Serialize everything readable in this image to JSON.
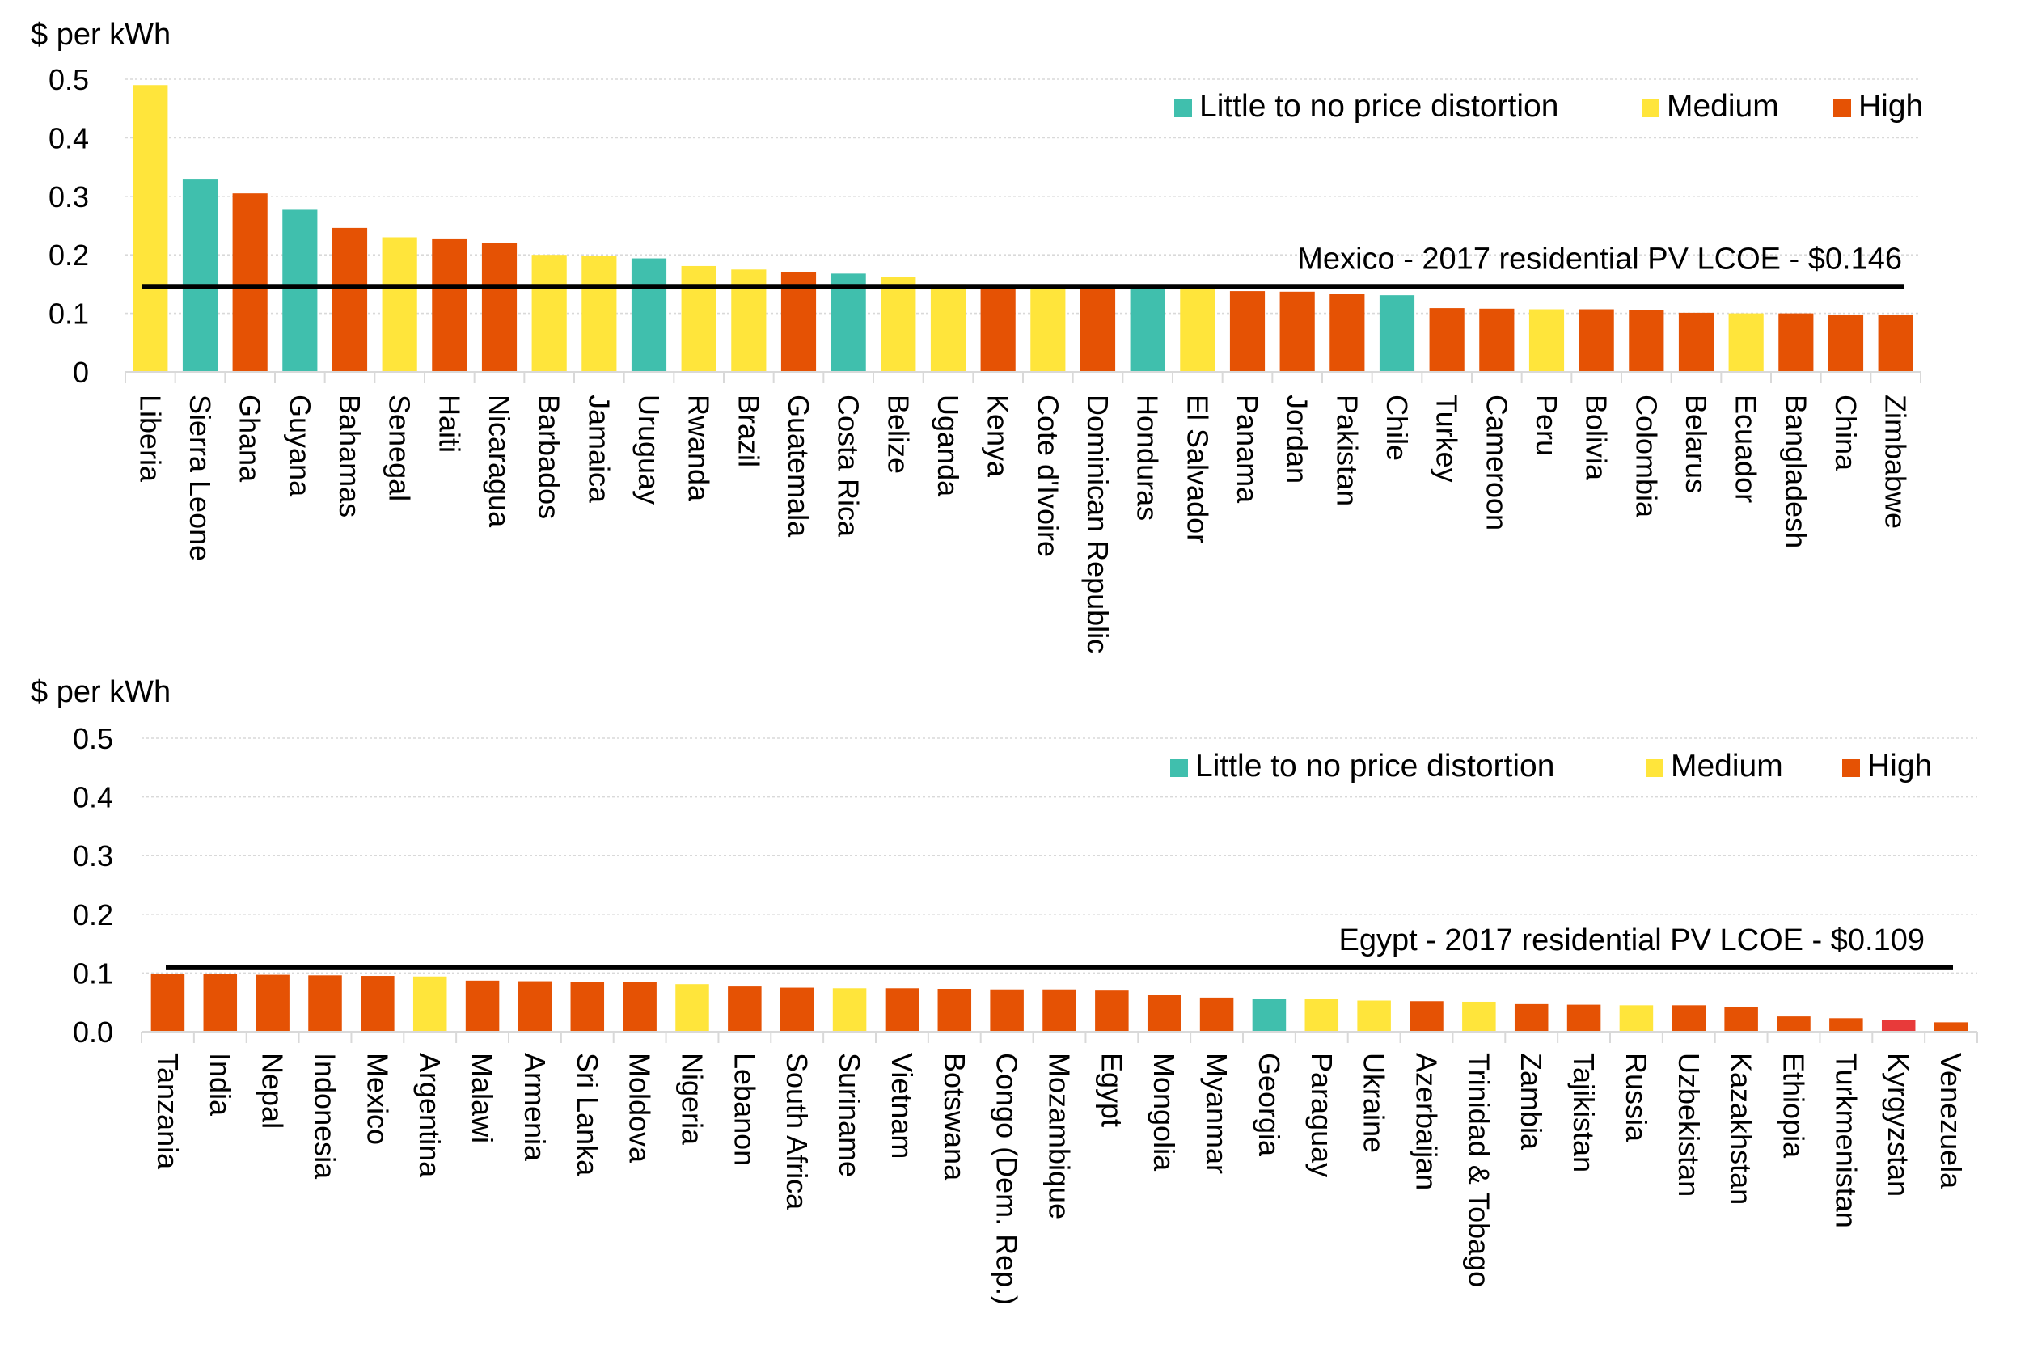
{
  "colors": {
    "little": "#40BFAD",
    "medium": "#FFE53B",
    "high": "#E55204",
    "kyrgyzstan": "#E83A3A",
    "reference_line": "#000000",
    "grid": "#D9D9D9"
  },
  "chart_data": [
    {
      "type": "bar",
      "ylabel": "$ per kWh",
      "ylim": [
        0,
        0.5
      ],
      "yticks": [
        "0",
        "0.1",
        "0.2",
        "0.3",
        "0.4",
        "0.5"
      ],
      "grid": true,
      "legend_placement": "top-right",
      "legend": [
        {
          "key": "little",
          "label": "Little to no price distortion"
        },
        {
          "key": "medium",
          "label": "Medium"
        },
        {
          "key": "high",
          "label": "High"
        }
      ],
      "reference_line": {
        "value": 0.146,
        "label": "Mexico - 2017 residential PV LCOE - $0.146"
      },
      "categories": [
        "Liberia",
        "Sierra Leone",
        "Ghana",
        "Guyana",
        "Bahamas",
        "Senegal",
        "Haiti",
        "Nicaragua",
        "Barbados",
        "Jamaica",
        "Uruguay",
        "Rwanda",
        "Brazil",
        "Guatemala",
        "Costa Rica",
        "Belize",
        "Uganda",
        "Kenya",
        "Cote d'Ivoire",
        "Dominican Republic",
        "Honduras",
        "El Salvador",
        "Panama",
        "Jordan",
        "Pakistan",
        "Chile",
        "Turkey",
        "Cameroon",
        "Peru",
        "Bolivia",
        "Colombia",
        "Belarus",
        "Ecuador",
        "Bangladesh",
        "China",
        "Zimbabwe"
      ],
      "values": [
        0.49,
        0.33,
        0.305,
        0.277,
        0.246,
        0.23,
        0.228,
        0.22,
        0.2,
        0.198,
        0.194,
        0.181,
        0.175,
        0.17,
        0.168,
        0.162,
        0.15,
        0.149,
        0.146,
        0.145,
        0.145,
        0.144,
        0.138,
        0.137,
        0.133,
        0.131,
        0.109,
        0.108,
        0.107,
        0.107,
        0.106,
        0.101,
        0.1,
        0.1,
        0.098,
        0.097
      ],
      "distortion": [
        "medium",
        "little",
        "high",
        "little",
        "high",
        "medium",
        "high",
        "high",
        "medium",
        "medium",
        "little",
        "medium",
        "medium",
        "high",
        "little",
        "medium",
        "medium",
        "high",
        "medium",
        "high",
        "little",
        "medium",
        "high",
        "high",
        "high",
        "little",
        "high",
        "high",
        "medium",
        "high",
        "high",
        "high",
        "medium",
        "high",
        "high",
        "high"
      ]
    },
    {
      "type": "bar",
      "ylabel": "$ per kWh",
      "ylim": [
        0,
        0.5
      ],
      "yticks": [
        "0.0",
        "0.1",
        "0.2",
        "0.3",
        "0.4",
        "0.5"
      ],
      "grid": true,
      "legend_placement": "top-right",
      "legend": [
        {
          "key": "little",
          "label": "Little to no price distortion"
        },
        {
          "key": "medium",
          "label": "Medium"
        },
        {
          "key": "high",
          "label": "High"
        }
      ],
      "reference_line": {
        "value": 0.109,
        "label": "Egypt - 2017 residential PV LCOE - $0.109"
      },
      "categories": [
        "Tanzania",
        "India",
        "Nepal",
        "Indonesia",
        "Mexico",
        "Argentina",
        "Malawi",
        "Armenia",
        "Sri Lanka",
        "Moldova",
        "Nigeria",
        "Lebanon",
        "South Africa",
        "Suriname",
        "Vietnam",
        "Botswana",
        "Congo (Dem. Rep.)",
        "Mozambique",
        "Egypt",
        "Mongolia",
        "Myanmar",
        "Georgia",
        "Paraguay",
        "Ukraine",
        "Azerbaijan",
        "Trinidad & Tobago",
        "Zambia",
        "Tajikistan",
        "Russia",
        "Uzbekistan",
        "Kazakhstan",
        "Ethiopia",
        "Turkmenistan",
        "Kyrgyzstan",
        "Venezuela"
      ],
      "values": [
        0.098,
        0.098,
        0.097,
        0.096,
        0.095,
        0.094,
        0.087,
        0.086,
        0.085,
        0.085,
        0.081,
        0.077,
        0.075,
        0.074,
        0.074,
        0.073,
        0.072,
        0.072,
        0.07,
        0.063,
        0.058,
        0.056,
        0.056,
        0.053,
        0.052,
        0.051,
        0.047,
        0.046,
        0.045,
        0.045,
        0.042,
        0.026,
        0.023,
        0.02,
        0.016
      ],
      "distortion": [
        "high",
        "high",
        "high",
        "high",
        "high",
        "medium",
        "high",
        "high",
        "high",
        "high",
        "medium",
        "high",
        "high",
        "medium",
        "high",
        "high",
        "high",
        "high",
        "high",
        "high",
        "high",
        "little",
        "medium",
        "medium",
        "high",
        "medium",
        "high",
        "high",
        "medium",
        "high",
        "high",
        "high",
        "high",
        "kyrgyzstan",
        "high"
      ]
    }
  ]
}
